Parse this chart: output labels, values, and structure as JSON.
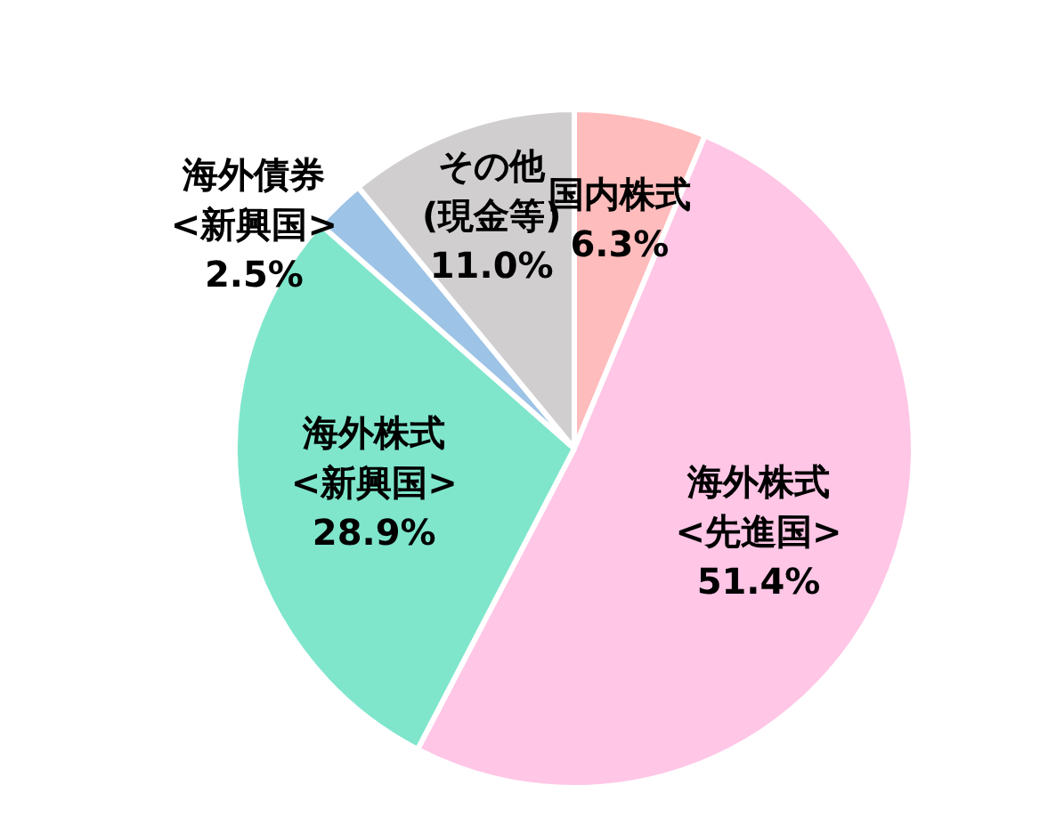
{
  "chart_data": {
    "type": "pie",
    "categories": [
      "国内株式",
      "海外株式\n<先進国>",
      "海外株式\n<新興国>",
      "海外債券\n<新興国>",
      "その他\n(現金等)"
    ],
    "values": [
      6.3,
      51.4,
      28.9,
      2.5,
      11.0
    ],
    "value_labels": [
      "6.3%",
      "51.4%",
      "28.9%",
      "2.5%",
      "11.0%"
    ],
    "colors": [
      "#ffbcbc",
      "#ffc6e6",
      "#7fe6cc",
      "#9dc3e6",
      "#d0cece"
    ],
    "legend": false
  }
}
